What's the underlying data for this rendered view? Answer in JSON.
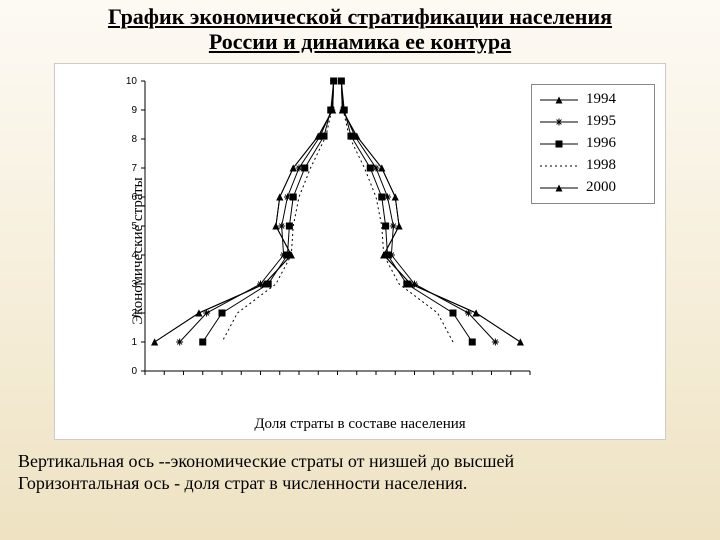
{
  "title_line1": "График экономической стратификации населения",
  "title_line2": "России и динамика ее контура",
  "chart": {
    "type": "line",
    "ylabel": "Экономические страты",
    "xlabel": "Доля страты в составе населения",
    "ylim": [
      0,
      10
    ],
    "yticks": [
      0,
      1,
      2,
      3,
      4,
      5,
      6,
      7,
      8,
      9,
      10
    ],
    "ytick_labels": [
      "0",
      "1",
      "2",
      "3",
      "4",
      "5",
      "6",
      "7",
      "8",
      "9",
      "10"
    ],
    "xlim": [
      -10,
      10
    ],
    "xticks_minor": [
      -10,
      -9,
      -8,
      -7,
      -6,
      -5,
      -4,
      -3,
      -2,
      -1,
      0,
      1,
      2,
      3,
      4,
      5,
      6,
      7,
      8,
      9,
      10
    ],
    "background_color": "#ffffff",
    "axis_color": "#000000",
    "tick_len": 5,
    "ytick_fontsize": 10,
    "legend_border": "#888888",
    "series": [
      {
        "name": "1994",
        "color": "#000000",
        "marker": "triangle",
        "dash": "none",
        "points": [
          [
            -0.2,
            10
          ],
          [
            -0.25,
            9
          ],
          [
            -1.0,
            8.1
          ],
          [
            -2.3,
            7
          ],
          [
            -3.0,
            6
          ],
          [
            -3.2,
            5
          ],
          [
            -2.4,
            4
          ],
          [
            -3.8,
            3
          ],
          [
            -7.2,
            2
          ],
          [
            -9.5,
            1
          ],
          [
            9.5,
            1
          ],
          [
            7.2,
            2
          ],
          [
            3.8,
            3
          ],
          [
            2.4,
            4
          ],
          [
            3.2,
            5
          ],
          [
            3.0,
            6
          ],
          [
            2.3,
            7
          ],
          [
            1.0,
            8.1
          ],
          [
            0.25,
            9
          ],
          [
            0.2,
            10
          ]
        ]
      },
      {
        "name": "1995",
        "color": "#000000",
        "marker": "star",
        "dash": "none",
        "points": [
          [
            -0.2,
            10
          ],
          [
            -0.3,
            9
          ],
          [
            -0.9,
            8.1
          ],
          [
            -2.0,
            7
          ],
          [
            -2.6,
            6
          ],
          [
            -2.9,
            5
          ],
          [
            -2.8,
            4
          ],
          [
            -4.0,
            3
          ],
          [
            -6.8,
            2
          ],
          [
            -8.2,
            1
          ],
          [
            8.2,
            1
          ],
          [
            6.8,
            2
          ],
          [
            4.0,
            3
          ],
          [
            2.8,
            4
          ],
          [
            2.9,
            5
          ],
          [
            2.6,
            6
          ],
          [
            2.0,
            7
          ],
          [
            0.9,
            8.1
          ],
          [
            0.3,
            9
          ],
          [
            0.2,
            10
          ]
        ]
      },
      {
        "name": "1996",
        "color": "#000000",
        "marker": "square",
        "dash": "none",
        "points": [
          [
            -0.2,
            10
          ],
          [
            -0.35,
            9
          ],
          [
            -0.7,
            8.1
          ],
          [
            -1.7,
            7
          ],
          [
            -2.3,
            6
          ],
          [
            -2.5,
            5
          ],
          [
            -2.6,
            4
          ],
          [
            -3.6,
            3
          ],
          [
            -6.0,
            2
          ],
          [
            -7.0,
            1
          ],
          [
            7.0,
            1
          ],
          [
            6.0,
            2
          ],
          [
            3.6,
            3
          ],
          [
            2.6,
            4
          ],
          [
            2.5,
            5
          ],
          [
            2.3,
            6
          ],
          [
            1.7,
            7
          ],
          [
            0.7,
            8.1
          ],
          [
            0.35,
            9
          ],
          [
            0.2,
            10
          ]
        ]
      },
      {
        "name": "1998",
        "color": "#000000",
        "marker": "none",
        "dash": "dotted",
        "points": [
          [
            -0.2,
            10
          ],
          [
            -0.3,
            9
          ],
          [
            -0.6,
            8.1
          ],
          [
            -1.4,
            7
          ],
          [
            -2.0,
            6
          ],
          [
            -2.3,
            5
          ],
          [
            -2.4,
            4
          ],
          [
            -3.2,
            3
          ],
          [
            -5.2,
            2
          ],
          [
            -6.0,
            1
          ],
          [
            6.0,
            1
          ],
          [
            5.2,
            2
          ],
          [
            3.2,
            3
          ],
          [
            2.4,
            4
          ],
          [
            2.3,
            5
          ],
          [
            2.0,
            6
          ],
          [
            1.4,
            7
          ],
          [
            0.6,
            8.1
          ],
          [
            0.3,
            9
          ],
          [
            0.2,
            10
          ]
        ]
      },
      {
        "name": "2000",
        "color": "#000000",
        "marker": "triangle",
        "dash": "none",
        "points": [
          [
            -0.2,
            10
          ],
          [
            -0.25,
            9
          ],
          [
            -1.0,
            8.1
          ],
          [
            -2.3,
            7
          ],
          [
            -3.0,
            6
          ],
          [
            -3.2,
            5
          ],
          [
            -2.4,
            4
          ],
          [
            -3.8,
            3
          ],
          [
            -7.2,
            2
          ],
          [
            -9.5,
            1
          ],
          [
            9.5,
            1
          ],
          [
            7.2,
            2
          ],
          [
            3.8,
            3
          ],
          [
            2.4,
            4
          ],
          [
            3.2,
            5
          ],
          [
            3.0,
            6
          ],
          [
            2.3,
            7
          ],
          [
            1.0,
            8.1
          ],
          [
            0.25,
            9
          ],
          [
            0.2,
            10
          ]
        ]
      }
    ]
  },
  "footer_line1": "Вертикальная ось  --экономические страты от низшей до высшей",
  "footer_line2": "Горизонтальная ось - доля страт в численности населения."
}
